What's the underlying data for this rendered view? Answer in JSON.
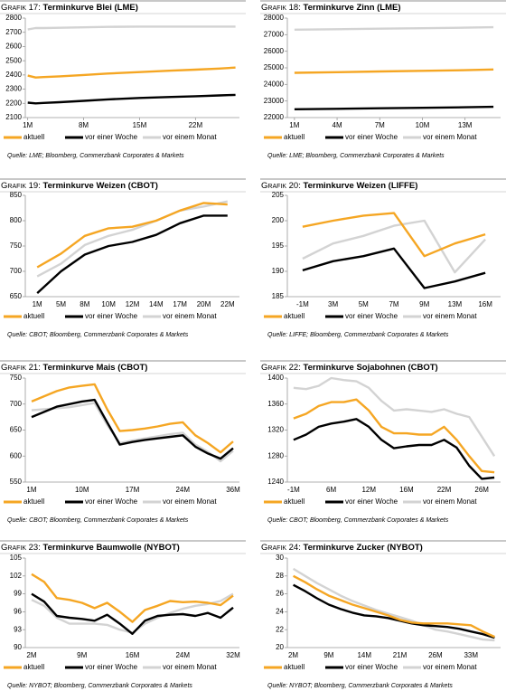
{
  "chart_data": [
    {
      "type": "line",
      "label": "Grafik 17:",
      "title": "Terminkurve Blei (LME)",
      "source": "Quelle: LME; Bloomberg, Commerzbank Corporates & Markets",
      "x": [
        1,
        2,
        3,
        5,
        8,
        11,
        15,
        19,
        22,
        25,
        27
      ],
      "xlim": [
        0.7,
        27.5
      ],
      "xticks": [
        {
          "value": 1,
          "label": "1M"
        },
        {
          "value": 8,
          "label": "8M"
        },
        {
          "value": 15,
          "label": "15M"
        },
        {
          "value": 22,
          "label": "22M"
        }
      ],
      "ylim": [
        2100,
        2800
      ],
      "yticks": [
        2100,
        2200,
        2300,
        2400,
        2500,
        2600,
        2700,
        2800
      ],
      "series": [
        {
          "name": "aktuell",
          "color": "#f5a623",
          "values": [
            2395,
            2382,
            2385,
            2390,
            2400,
            2410,
            2420,
            2430,
            2437,
            2445,
            2452
          ]
        },
        {
          "name": "vor einer Woche",
          "color": "#000000",
          "values": [
            2205,
            2200,
            2203,
            2208,
            2218,
            2228,
            2238,
            2245,
            2250,
            2256,
            2260
          ]
        },
        {
          "name": "vor einem Monat",
          "color": "#d3d3d3",
          "values": [
            2720,
            2730,
            2730,
            2732,
            2735,
            2738,
            2740,
            2740,
            2740,
            2740,
            2740
          ]
        }
      ]
    },
    {
      "type": "line",
      "label": "Grafik 18:",
      "title": "Terminkurve Zinn (LME)",
      "source": "Quelle: LME; Bloomberg, Commerzbank Corporates & Markets",
      "x": [
        1,
        4,
        7,
        10,
        13,
        15
      ],
      "xlim": [
        0.5,
        15.5
      ],
      "xticks": [
        {
          "value": 1,
          "label": "1M"
        },
        {
          "value": 4,
          "label": "4M"
        },
        {
          "value": 7,
          "label": "7M"
        },
        {
          "value": 10,
          "label": "10M"
        },
        {
          "value": 13,
          "label": "13M"
        }
      ],
      "ylim": [
        22000,
        28000
      ],
      "yticks": [
        22000,
        23000,
        24000,
        25000,
        26000,
        27000,
        28000
      ],
      "series": [
        {
          "name": "aktuell",
          "color": "#f5a623",
          "values": [
            24700,
            24740,
            24780,
            24820,
            24860,
            24900
          ]
        },
        {
          "name": "vor einer Woche",
          "color": "#000000",
          "values": [
            22500,
            22530,
            22560,
            22590,
            22620,
            22650
          ]
        },
        {
          "name": "vor einem Monat",
          "color": "#d3d3d3",
          "values": [
            27300,
            27330,
            27360,
            27390,
            27420,
            27450
          ]
        }
      ]
    },
    {
      "type": "line",
      "label": "Grafik 19:",
      "title": "Terminkurve Weizen (CBOT)",
      "source": "Quelle: CBOT; Bloomberg, Commerzbank Corporates & Markets",
      "categories": [
        "1M",
        "5M",
        "8M",
        "10M",
        "12M",
        "14M",
        "17M",
        "20M",
        "22M"
      ],
      "ylim": [
        650,
        850
      ],
      "yticks": [
        650,
        700,
        750,
        800,
        850
      ],
      "series": [
        {
          "name": "aktuell",
          "color": "#f5a623",
          "values": [
            708,
            735,
            770,
            785,
            788,
            800,
            820,
            835,
            832
          ]
        },
        {
          "name": "vor einer Woche",
          "color": "#000000",
          "values": [
            657,
            700,
            733,
            750,
            758,
            772,
            795,
            810,
            810
          ]
        },
        {
          "name": "vor einem Monat",
          "color": "#d3d3d3",
          "values": [
            690,
            715,
            752,
            770,
            782,
            800,
            820,
            828,
            838
          ]
        }
      ]
    },
    {
      "type": "line",
      "label": "Grafik 20:",
      "title": "Terminkurve Weizen (LIFFE)",
      "source": "Quelle: LIFFE; Bloomberg, Commerzbank Corporates & Markets",
      "categories": [
        "-1M",
        "3M",
        "5M",
        "7M",
        "9M",
        "13M",
        "16M"
      ],
      "ylim": [
        185,
        205
      ],
      "yticks": [
        185,
        190,
        195,
        200,
        205
      ],
      "series": [
        {
          "name": "aktuell",
          "color": "#f5a623",
          "values": [
            198.8,
            200,
            201,
            201.5,
            193,
            195.5,
            197.3
          ]
        },
        {
          "name": "vor einer Woche",
          "color": "#000000",
          "values": [
            190.2,
            192,
            193,
            194.5,
            186.7,
            188,
            189.7
          ]
        },
        {
          "name": "vor einem Monat",
          "color": "#d3d3d3",
          "values": [
            192.5,
            195.5,
            197,
            199,
            200,
            189.8,
            196.3
          ]
        }
      ]
    },
    {
      "type": "line",
      "label": "Grafik 21:",
      "title": "Terminkurve Mais (CBOT)",
      "source": "Quelle: CBOT; Bloomberg, Commerzbank Corporates & Markets",
      "categories": [
        "1M",
        null,
        null,
        null,
        "10M",
        null,
        null,
        null,
        "17M",
        null,
        null,
        null,
        "24M",
        null,
        null,
        null,
        "36M"
      ],
      "ylim": [
        550,
        750
      ],
      "yticks": [
        550,
        600,
        650,
        700,
        750
      ],
      "series": [
        {
          "name": "aktuell",
          "color": "#f5a623",
          "values": [
            705,
            715,
            725,
            732,
            735,
            738,
            690,
            648,
            650,
            653,
            657,
            662,
            665,
            640,
            625,
            607,
            628
          ]
        },
        {
          "name": "vor einer Woche",
          "color": "#000000",
          "values": [
            675,
            685,
            695,
            700,
            705,
            708,
            665,
            622,
            627,
            631,
            634,
            637,
            640,
            618,
            605,
            595,
            615
          ]
        },
        {
          "name": "vor einem Monat",
          "color": "#d3d3d3",
          "values": [
            688,
            690,
            692,
            694,
            698,
            702,
            660,
            625,
            630,
            634,
            638,
            642,
            645,
            622,
            608,
            590,
            610
          ]
        }
      ]
    },
    {
      "type": "line",
      "label": "Grafik 22:",
      "title": "Terminkurve Sojabohnen (CBOT)",
      "source": "Quelle: CBOT; Bloomberg, Commerzbank Corporates & Markets",
      "categories": [
        "-1M",
        null,
        null,
        "6M",
        null,
        null,
        "12M",
        null,
        null,
        "16M",
        null,
        null,
        "22M",
        null,
        null,
        "26M",
        null
      ],
      "ylim": [
        1240,
        1400
      ],
      "yticks": [
        1240,
        1280,
        1320,
        1360,
        1400
      ],
      "series": [
        {
          "name": "aktuell",
          "color": "#f5a623",
          "values": [
            1338,
            1345,
            1357,
            1363,
            1363,
            1367,
            1350,
            1325,
            1315,
            1315,
            1313,
            1313,
            1325,
            1305,
            1280,
            1257,
            1255
          ]
        },
        {
          "name": "vor einer Woche",
          "color": "#000000",
          "values": [
            1305,
            1313,
            1325,
            1330,
            1333,
            1337,
            1325,
            1305,
            1292,
            1295,
            1297,
            1297,
            1305,
            1293,
            1265,
            1245,
            1247
          ]
        },
        {
          "name": "vor einem Monat",
          "color": "#d3d3d3",
          "values": [
            1385,
            1383,
            1388,
            1400,
            1397,
            1395,
            1385,
            1365,
            1350,
            1352,
            1350,
            1348,
            1352,
            1345,
            1340,
            1310,
            1280
          ]
        }
      ]
    },
    {
      "type": "line",
      "label": "Grafik 23:",
      "title": "Terminkurve Baumwolle (NYBOT)",
      "source": "Quelle: NYBOT; Bloomberg, Commerzbank Corporates & Markets",
      "categories": [
        "2M",
        null,
        null,
        null,
        "9M",
        null,
        null,
        null,
        "16M",
        null,
        null,
        null,
        "24M",
        null,
        null,
        null,
        "32M"
      ],
      "ylim": [
        90,
        105
      ],
      "yticks": [
        90,
        93,
        96,
        99,
        102,
        105
      ],
      "series": [
        {
          "name": "aktuell",
          "color": "#f5a623",
          "values": [
            102.3,
            101,
            98.3,
            98,
            97.5,
            96.6,
            97.5,
            96,
            94.3,
            96.3,
            97,
            97.8,
            97.6,
            97.7,
            97.5,
            97.1,
            98.7
          ]
        },
        {
          "name": "vor einer Woche",
          "color": "#000000",
          "values": [
            99,
            97.7,
            95.3,
            95,
            94.8,
            94.5,
            95.5,
            94,
            92.3,
            94.5,
            95.3,
            95.5,
            95.6,
            95.3,
            95.8,
            95,
            96.7
          ]
        },
        {
          "name": "vor einem Monat",
          "color": "#d3d3d3",
          "values": [
            98,
            97,
            95,
            94,
            94,
            94,
            93.8,
            93,
            92.5,
            94,
            95,
            95.8,
            96.5,
            97,
            97.3,
            97.8,
            99
          ]
        }
      ]
    },
    {
      "type": "line",
      "label": "Grafik 24:",
      "title": "Terminkurve Zucker (NYBOT)",
      "source": "Quelle: NYBOT; Bloomberg, Commerzbank Corporates & Markets",
      "categories": [
        "2M",
        null,
        null,
        "9M",
        null,
        null,
        "14M",
        null,
        null,
        "21M",
        null,
        null,
        "26M",
        null,
        null,
        "33M",
        null,
        null
      ],
      "ylim": [
        20,
        30
      ],
      "yticks": [
        20,
        22,
        24,
        26,
        28,
        30
      ],
      "series": [
        {
          "name": "aktuell",
          "color": "#f5a623",
          "values": [
            28,
            27.3,
            26.5,
            25.8,
            25.3,
            24.8,
            24.4,
            24,
            23.6,
            23.1,
            22.8,
            22.7,
            22.7,
            22.7,
            22.6,
            22.5,
            21.8,
            21.2
          ]
        },
        {
          "name": "vor einer Woche",
          "color": "#000000",
          "values": [
            27,
            26.3,
            25.5,
            24.8,
            24.3,
            23.9,
            23.6,
            23.5,
            23.3,
            23,
            22.7,
            22.5,
            22.4,
            22.3,
            22.1,
            21.8,
            21.5,
            21.1
          ]
        },
        {
          "name": "vor einem Monat",
          "color": "#d3d3d3",
          "values": [
            28.8,
            28,
            27.2,
            26.5,
            25.8,
            25.2,
            24.7,
            24.2,
            23.8,
            23.4,
            23,
            22.5,
            22,
            21.8,
            21.5,
            21.2,
            20.9,
            20.8
          ]
        }
      ]
    }
  ]
}
